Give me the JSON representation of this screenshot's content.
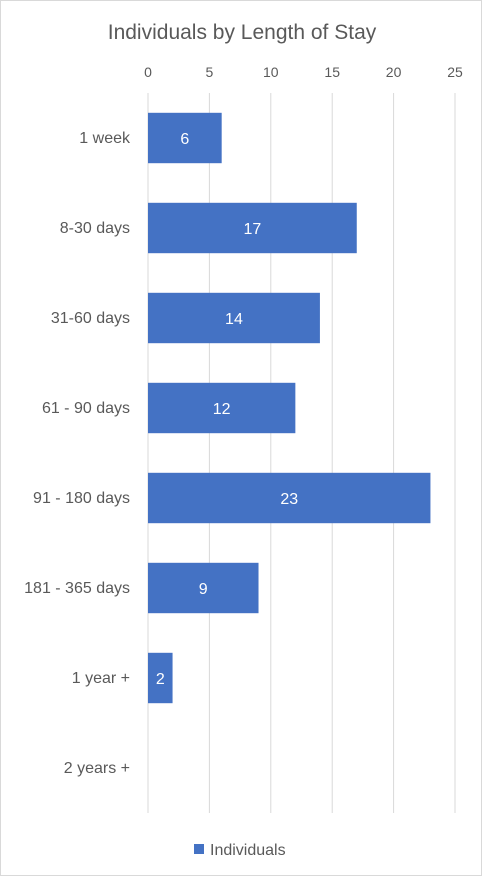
{
  "chart_data": {
    "type": "bar",
    "orientation": "horizontal",
    "title": "Individuals by Length of Stay",
    "categories": [
      "1 week",
      "8-30 days",
      "31-60 days",
      "61 - 90 days",
      "91 - 180 days",
      "181 - 365 days",
      "1 year +",
      "2 years +"
    ],
    "series": [
      {
        "name": "Individuals",
        "values": [
          6,
          17,
          14,
          12,
          23,
          9,
          2,
          null
        ],
        "color": "#4472c4"
      }
    ],
    "data_labels": [
      "6",
      "17",
      "14",
      "12",
      "23",
      "9",
      "2",
      ""
    ],
    "x_ticks": [
      "0",
      "5",
      "10",
      "15",
      "20",
      "25"
    ],
    "xlim": [
      0,
      25
    ],
    "x_axis_position": "top",
    "grid": true,
    "legend_position": "bottom"
  }
}
